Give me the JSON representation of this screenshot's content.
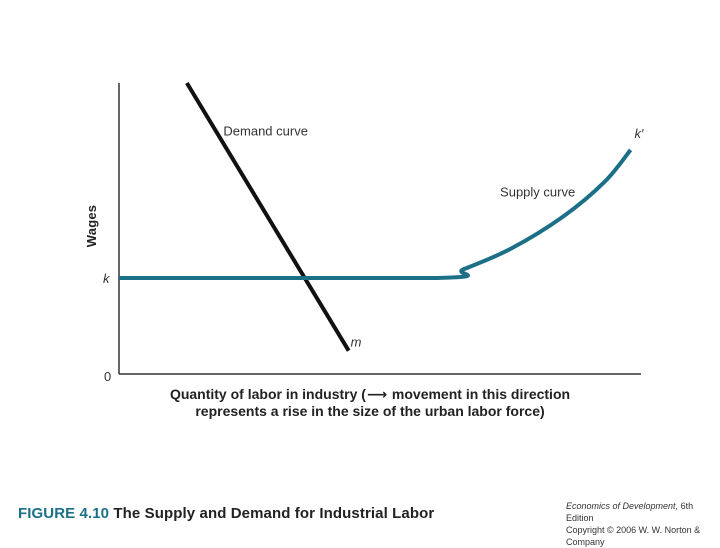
{
  "chart_data": {
    "type": "line",
    "title": "",
    "ylabel": "Wages",
    "xlabel_line1_prefix": "Quantity of labor in industry (",
    "xlabel_arrow": "⟶",
    "xlabel_line1_suffix": " movement in this direction",
    "xlabel_line2": "represents a rise in the size of the urban labor force)",
    "origin_label": "0",
    "xlim": [
      0,
      100
    ],
    "ylim": [
      0,
      100
    ],
    "grid": false,
    "tick_labels": [
      {
        "text": "k",
        "axis": "y",
        "value": 33
      }
    ],
    "series": [
      {
        "name": "Demand curve",
        "color": "#111111",
        "points": [
          [
            13,
            100
          ],
          [
            44,
            8
          ]
        ],
        "endpoint_labels": [
          {
            "text": "m",
            "point": [
              44,
              8
            ]
          }
        ]
      },
      {
        "name": "Supply curve",
        "color": "#1b6f86",
        "points": [
          [
            0,
            33
          ],
          [
            61,
            33
          ],
          [
            66,
            36
          ],
          [
            75,
            43
          ],
          [
            85,
            54
          ],
          [
            93,
            66
          ],
          [
            98,
            77
          ]
        ],
        "endpoint_labels": [
          {
            "text": "k′",
            "point": [
              98,
              77
            ]
          }
        ]
      }
    ],
    "annotations": [
      {
        "text": "Demand curve",
        "near_series": "Demand curve"
      },
      {
        "text": "Supply curve",
        "near_series": "Supply curve"
      }
    ]
  },
  "caption": {
    "figure_number": "FIGURE 4.10",
    "title": " The Supply and Demand for Industrial Labor"
  },
  "credit": {
    "book": "Economics of Development,",
    "edition": " 6th Edition",
    "copyright": "Copyright © 2006 W. W. Norton & Company"
  }
}
